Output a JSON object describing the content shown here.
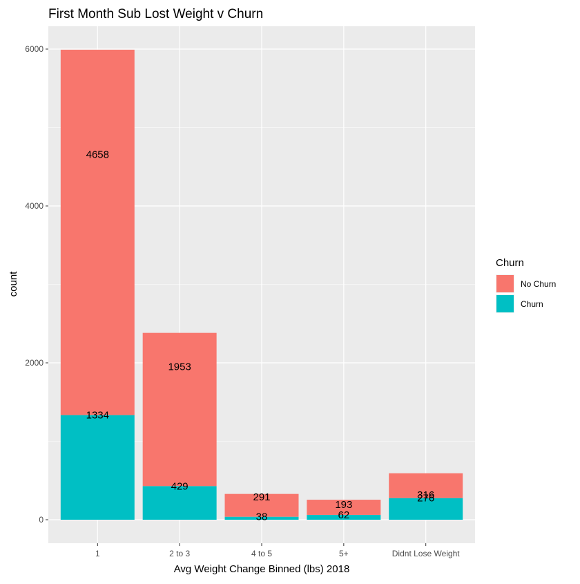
{
  "chart_data": {
    "type": "bar",
    "stacked": true,
    "title": "First Month Sub Lost Weight v Churn",
    "xlabel": "Avg Weight Change Binned (lbs) 2018",
    "ylabel": "count",
    "categories": [
      "1",
      "2 to 3",
      "4 to 5",
      "5+",
      "Didnt Lose Weight"
    ],
    "ylim": [
      0,
      6000
    ],
    "yticks": [
      0,
      2000,
      4000,
      6000
    ],
    "grid": true,
    "legend": {
      "title": "Churn",
      "position": "right"
    },
    "series": [
      {
        "name": "No Churn",
        "color": "#F8766D",
        "values": [
          4658,
          1953,
          291,
          193,
          316
        ]
      },
      {
        "name": "Churn",
        "color": "#00BFC4",
        "values": [
          1334,
          429,
          38,
          62,
          276
        ]
      }
    ]
  }
}
